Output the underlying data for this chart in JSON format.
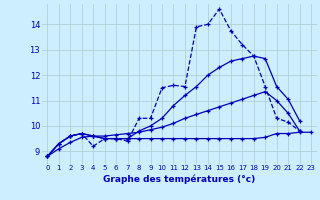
{
  "background_color": "#cceeff",
  "grid_color": "#aacccc",
  "line_color": "#0000bb",
  "xlabel": "Graphe des températures (°c)",
  "ylim": [
    8.5,
    14.8
  ],
  "xlim": [
    -0.5,
    23.5
  ],
  "yticks": [
    9,
    10,
    11,
    12,
    13,
    14
  ],
  "xticks": [
    0,
    1,
    2,
    3,
    4,
    5,
    6,
    7,
    8,
    9,
    10,
    11,
    12,
    13,
    14,
    15,
    16,
    17,
    18,
    19,
    20,
    21,
    22,
    23
  ],
  "sa_x": [
    0,
    1,
    2,
    3,
    4,
    5,
    6,
    7,
    8,
    9,
    10,
    11,
    12,
    13,
    14,
    15,
    16,
    17,
    18,
    19,
    20,
    21,
    22
  ],
  "sa_y": [
    8.8,
    9.3,
    9.6,
    9.7,
    9.2,
    9.5,
    9.5,
    9.4,
    10.3,
    10.3,
    11.5,
    11.6,
    11.55,
    13.9,
    14.0,
    14.6,
    13.75,
    13.2,
    12.75,
    11.55,
    10.3,
    10.15,
    9.8
  ],
  "sb_x": [
    0,
    1,
    2,
    3,
    4,
    5,
    6,
    7,
    8,
    9,
    10,
    11,
    12,
    13,
    14,
    15,
    16,
    17,
    18,
    19,
    20,
    21,
    22
  ],
  "sb_y": [
    8.8,
    9.3,
    9.6,
    9.7,
    9.6,
    9.5,
    9.5,
    9.5,
    9.8,
    10.0,
    10.3,
    10.8,
    11.2,
    11.55,
    12.0,
    12.3,
    12.55,
    12.65,
    12.75,
    12.65,
    11.55,
    11.05,
    10.2
  ],
  "sc_x": [
    0,
    1,
    2,
    3,
    4,
    5,
    6,
    7,
    8,
    9,
    10,
    11,
    12,
    13,
    14,
    15,
    16,
    17,
    18,
    19,
    20,
    21,
    22,
    23
  ],
  "sc_y": [
    8.8,
    9.3,
    9.6,
    9.7,
    9.6,
    9.5,
    9.5,
    9.5,
    9.5,
    9.5,
    9.5,
    9.5,
    9.5,
    9.5,
    9.5,
    9.5,
    9.5,
    9.5,
    9.5,
    9.55,
    9.7,
    9.7,
    9.75,
    9.75
  ],
  "sd_x": [
    0,
    1,
    2,
    3,
    4,
    5,
    6,
    7,
    8,
    9,
    10,
    11,
    12,
    13,
    14,
    15,
    16,
    17,
    18,
    19,
    20,
    21,
    22
  ],
  "sd_y": [
    8.8,
    9.1,
    9.35,
    9.55,
    9.6,
    9.6,
    9.65,
    9.7,
    9.75,
    9.85,
    9.95,
    10.1,
    10.3,
    10.45,
    10.6,
    10.75,
    10.9,
    11.05,
    11.2,
    11.35,
    11.0,
    10.5,
    9.8
  ]
}
